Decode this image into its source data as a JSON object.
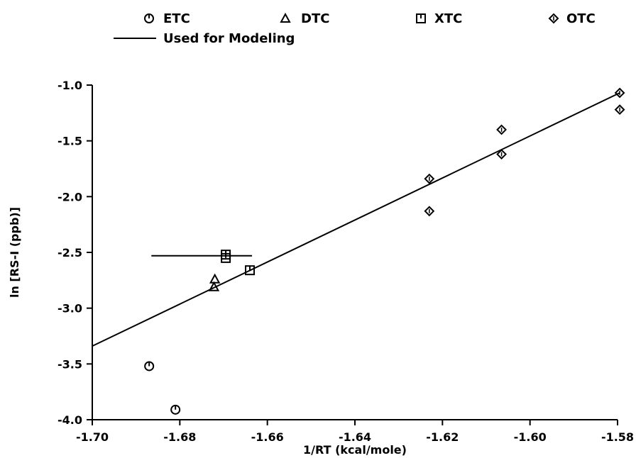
{
  "chart_data": {
    "type": "scatter",
    "xlabel": "1/RT (kcal/mole)",
    "ylabel": "ln [RS-I (ppb)]",
    "xlim": [
      -1.7,
      -1.58
    ],
    "ylim": [
      -4.0,
      -1.0
    ],
    "x_ticks": [
      "-1.70",
      "-1.68",
      "-1.66",
      "-1.64",
      "-1.62",
      "-1.60",
      "-1.58"
    ],
    "y_ticks": [
      "-1.0",
      "-1.5",
      "-2.0",
      "-2.5",
      "-3.0",
      "-3.5",
      "-4.0"
    ],
    "grid": false,
    "legend_position": "top",
    "series": [
      {
        "name": "ETC",
        "marker": "circle-bar",
        "points": [
          [
            -1.687,
            -3.52
          ],
          [
            -1.681,
            -3.91
          ]
        ]
      },
      {
        "name": "DTC",
        "marker": "triangle",
        "points": [
          [
            -1.672,
            -2.74
          ],
          [
            -1.6722,
            -2.81
          ]
        ]
      },
      {
        "name": "XTC",
        "marker": "square-bar",
        "points": [
          [
            -1.6695,
            -2.52
          ],
          [
            -1.6695,
            -2.55
          ],
          [
            -1.664,
            -2.66
          ]
        ]
      },
      {
        "name": "OTC",
        "marker": "diamond",
        "points": [
          [
            -1.623,
            -1.84
          ],
          [
            -1.623,
            -2.13
          ],
          [
            -1.6065,
            -1.4
          ],
          [
            -1.6065,
            -1.62
          ],
          [
            -1.5795,
            -1.07
          ],
          [
            -1.5795,
            -1.22
          ]
        ]
      }
    ],
    "lines": [
      {
        "name": "Used for Modeling",
        "points": [
          [
            -1.7,
            -3.34
          ],
          [
            -1.5795,
            -1.07
          ]
        ]
      },
      {
        "name": "",
        "points": [
          [
            -1.6865,
            -2.53
          ],
          [
            -1.6635,
            -2.53
          ]
        ]
      }
    ]
  }
}
